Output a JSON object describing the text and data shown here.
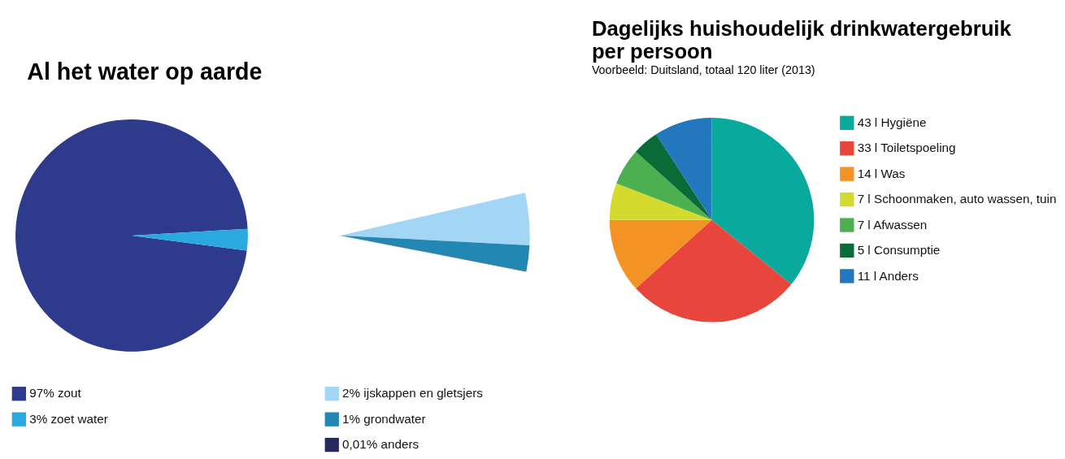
{
  "chart_data": [
    {
      "type": "pie",
      "title": "Al het water op aarde",
      "categories": [
        "97% zout",
        "3% zoet water"
      ],
      "values": [
        97,
        3
      ],
      "colors": [
        "#2e3a8c",
        "#2aa8e0"
      ],
      "legend": "bottom"
    },
    {
      "type": "pie",
      "categories": [
        "2% ijskappen en gletsjers",
        "1% grondwater",
        "0,01% anders"
      ],
      "values": [
        2,
        1,
        0.01
      ],
      "colors": [
        "#a3d5f4",
        "#2287b3",
        "#27295e"
      ],
      "legend": "bottom"
    },
    {
      "type": "pie",
      "title": "Dagelijks huishoudelijk drinkwatergebruik per persoon",
      "subtitle": "Voorbeeld: Duitsland, totaal 120 liter (2013)",
      "categories": [
        "43 l Hygiëne",
        "33 l Toiletspoeling",
        "14 l Was",
        "7 l Schoonmaken, auto wassen, tuin",
        "7 l Afwassen",
        "5 l Consumptie",
        "11 l Anders"
      ],
      "values": [
        43,
        33,
        14,
        7,
        7,
        5,
        11
      ],
      "colors": [
        "#0aa99d",
        "#e8453c",
        "#f39325",
        "#d4da2e",
        "#4caf50",
        "#0a6b36",
        "#2377bd"
      ],
      "legend": "right"
    }
  ]
}
